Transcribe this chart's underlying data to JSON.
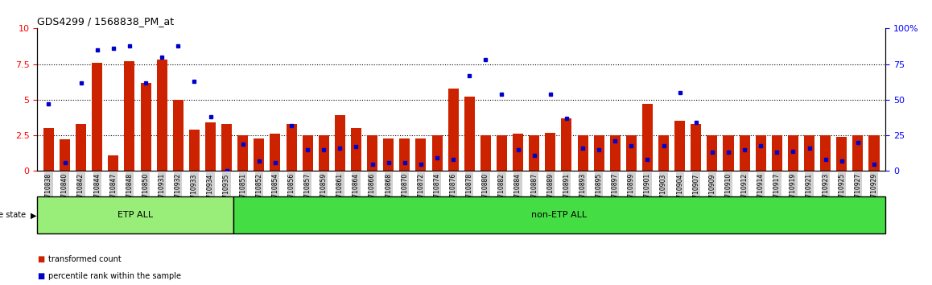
{
  "title": "GDS4299 / 1568838_PM_at",
  "samples": [
    "GSM710838",
    "GSM710840",
    "GSM710842",
    "GSM710844",
    "GSM710847",
    "GSM710848",
    "GSM710850",
    "GSM710931",
    "GSM710932",
    "GSM710933",
    "GSM710934",
    "GSM710935",
    "GSM710851",
    "GSM710852",
    "GSM710854",
    "GSM710856",
    "GSM710857",
    "GSM710859",
    "GSM710861",
    "GSM710864",
    "GSM710866",
    "GSM710868",
    "GSM710870",
    "GSM710872",
    "GSM710874",
    "GSM710876",
    "GSM710878",
    "GSM710880",
    "GSM710882",
    "GSM710884",
    "GSM710887",
    "GSM710889",
    "GSM710891",
    "GSM710893",
    "GSM710895",
    "GSM710897",
    "GSM710899",
    "GSM710901",
    "GSM710903",
    "GSM710904",
    "GSM710907",
    "GSM710909",
    "GSM710910",
    "GSM710912",
    "GSM710914",
    "GSM710917",
    "GSM710919",
    "GSM710921",
    "GSM710923",
    "GSM710925",
    "GSM710927",
    "GSM710929"
  ],
  "red_values": [
    3.0,
    2.2,
    3.3,
    7.6,
    1.1,
    7.7,
    6.2,
    7.8,
    5.0,
    2.9,
    3.4,
    3.3,
    2.5,
    2.3,
    2.6,
    3.3,
    2.5,
    2.5,
    3.9,
    3.0,
    2.5,
    2.3,
    2.3,
    2.3,
    2.5,
    5.8,
    5.2,
    2.5,
    2.5,
    2.6,
    2.5,
    2.7,
    3.7,
    2.5,
    2.5,
    2.5,
    2.5,
    4.7,
    2.5,
    3.5,
    3.3,
    2.5,
    2.5,
    2.5,
    2.5,
    2.5,
    2.5,
    2.5,
    2.5,
    2.4,
    2.5,
    2.5
  ],
  "blue_values": [
    47,
    6,
    62,
    85,
    86,
    88,
    62,
    80,
    88,
    63,
    38,
    0,
    19,
    7,
    6,
    32,
    15,
    15,
    16,
    17,
    5,
    6,
    6,
    5,
    9,
    8,
    67,
    78,
    54,
    15,
    11,
    54,
    37,
    16,
    15,
    21,
    18,
    8,
    18,
    55,
    34,
    13,
    13,
    15,
    18,
    13,
    14,
    16,
    8,
    7,
    20,
    5
  ],
  "etp_count": 12,
  "bar_color": "#cc2200",
  "dot_color": "#0000cc",
  "ylim_left": [
    0,
    10
  ],
  "ylim_right": [
    0,
    100
  ],
  "yticks_left": [
    0,
    2.5,
    5.0,
    7.5,
    10
  ],
  "yticks_right": [
    0,
    25,
    50,
    75,
    100
  ],
  "grid_values": [
    2.5,
    5.0,
    7.5
  ],
  "etp_color": "#98ee78",
  "non_etp_color": "#44dd44",
  "tick_bg_color": "#d0d0d0",
  "bar_width": 0.65,
  "fig_width": 11.58,
  "fig_height": 3.54,
  "dpi": 100
}
